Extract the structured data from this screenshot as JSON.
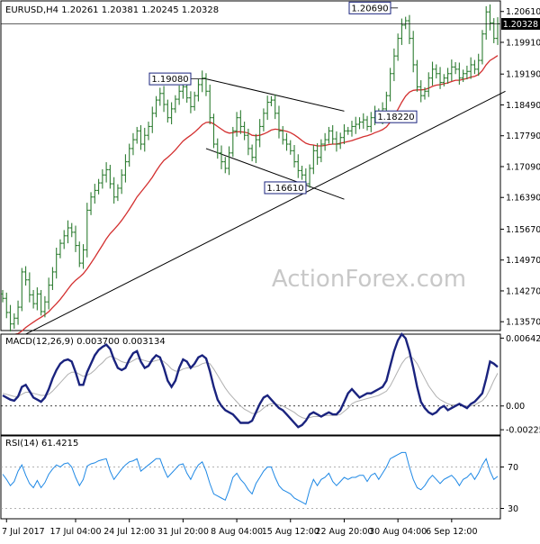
{
  "chart_data": [
    {
      "type": "candlestick",
      "pane": "price",
      "title": "EURUSD,H4  1.20261 1.20381 1.20245 1.20328",
      "watermark": "ActionForex.com",
      "ylim": [
        1.1337,
        1.2085
      ],
      "y_ticks": [
        1.2061,
        1.1991,
        1.1919,
        1.1849,
        1.1779,
        1.1709,
        1.1639,
        1.1567,
        1.1497,
        1.1427,
        1.1357
      ],
      "y_tick_labels": [
        "1.20610",
        "1.19910",
        "1.19190",
        "1.18490",
        "1.17790",
        "1.17090",
        "1.16390",
        "1.15670",
        "1.14970",
        "1.14270",
        "1.13570"
      ],
      "current_price": 1.20328,
      "current_price_label": "1.20328",
      "annotations": [
        {
          "label": "1.19080",
          "value": 1.1908
        },
        {
          "label": "1.16610",
          "value": 1.1661
        },
        {
          "label": "1.20690",
          "value": 1.2069
        },
        {
          "label": "1.18220",
          "value": 1.1822
        }
      ],
      "series": [
        {
          "name": "EURUSD close",
          "color": "#2e7d32",
          "values": [
            1.141,
            1.1378,
            1.1352,
            1.1365,
            1.139,
            1.147,
            1.1452,
            1.1418,
            1.1398,
            1.142,
            1.138,
            1.1402,
            1.144,
            1.147,
            1.151,
            1.1535,
            1.1552,
            1.157,
            1.156,
            1.153,
            1.149,
            1.152,
            1.161,
            1.164,
            1.1655,
            1.1672,
            1.169,
            1.1702,
            1.167,
            1.164,
            1.166,
            1.169,
            1.172,
            1.175,
            1.177,
            1.179,
            1.176,
            1.178,
            1.18,
            1.183,
            1.186,
            1.1875,
            1.185,
            1.182,
            1.184,
            1.1862,
            1.188,
            1.189,
            1.1865,
            1.1845,
            1.187,
            1.1895,
            1.191,
            1.188,
            1.182,
            1.176,
            1.174,
            1.172,
            1.1705,
            1.174,
            1.179,
            1.182,
            1.18,
            1.178,
            1.175,
            1.173,
            1.177,
            1.18,
            1.183,
            1.1855,
            1.186,
            1.183,
            1.179,
            1.177,
            1.176,
            1.1745,
            1.172,
            1.17,
            1.169,
            1.167,
            1.1705,
            1.1745,
            1.173,
            1.176,
            1.177,
            1.179,
            1.1772,
            1.176,
            1.1775,
            1.179,
            1.179,
            1.18,
            1.1805,
            1.181,
            1.1815,
            1.18,
            1.182,
            1.183,
            1.182,
            1.184,
            1.187,
            1.192,
            1.196,
            1.2,
            1.203,
            1.204,
            1.2,
            1.194,
            1.189,
            1.187,
            1.188,
            1.191,
            1.193,
            1.192,
            1.19,
            1.191,
            1.192,
            1.1935,
            1.193,
            1.191,
            1.192,
            1.1925,
            1.194,
            1.193,
            1.195,
            1.201,
            1.206,
            1.2035,
            1.2,
            1.2033
          ]
        },
        {
          "name": "EMA",
          "color": "#d32f2f",
          "values": [
            1.1325,
            1.1326,
            1.1327,
            1.1328,
            1.133,
            1.1336,
            1.1344,
            1.135,
            1.1356,
            1.1362,
            1.1367,
            1.1373,
            1.138,
            1.1389,
            1.1398,
            1.1408,
            1.1419,
            1.1431,
            1.1442,
            1.1451,
            1.1458,
            1.1466,
            1.1477,
            1.149,
            1.1503,
            1.1517,
            1.1531,
            1.1545,
            1.1557,
            1.1566,
            1.1576,
            1.1587,
            1.1599,
            1.1612,
            1.1626,
            1.164,
            1.1651,
            1.1662,
            1.1673,
            1.1685,
            1.1699,
            1.1712,
            1.1723,
            1.173,
            1.1738,
            1.1747,
            1.1757,
            1.1767,
            1.1774,
            1.178,
            1.1787,
            1.1795,
            1.1804,
            1.1809,
            1.181,
            1.1806,
            1.18,
            1.1794,
            1.1788,
            1.1785,
            1.1786,
            1.1788,
            1.1788,
            1.1787,
            1.1785,
            1.178,
            1.1779,
            1.178,
            1.1783,
            1.1787,
            1.1792,
            1.1794,
            1.1793,
            1.1791,
            1.1789,
            1.1786,
            1.1781,
            1.1775,
            1.1768,
            1.1762,
            1.1759,
            1.1758,
            1.1756,
            1.1756,
            1.1757,
            1.1759,
            1.176,
            1.176,
            1.1762,
            1.1764,
            1.1766,
            1.1768,
            1.1771,
            1.1774,
            1.1777,
            1.1779,
            1.1782,
            1.1786,
            1.1789,
            1.1793,
            1.1799,
            1.181,
            1.1824,
            1.1839,
            1.1855,
            1.1869,
            1.1878,
            1.1882,
            1.1883,
            1.1883,
            1.1884,
            1.1887,
            1.1891,
            1.1894,
            1.1895,
            1.1897,
            1.1899,
            1.1902,
            1.1905,
            1.1905,
            1.1907,
            1.1909,
            1.1912,
            1.1914,
            1.1918,
            1.1927,
            1.194,
            1.195,
            1.1955,
            1.1961
          ]
        }
      ],
      "trendlines": [
        {
          "name": "rising support",
          "from": {
            "i": 4,
            "value": 1.132
          },
          "to": {
            "i": 131,
            "value": 1.188
          }
        },
        {
          "name": "channel upper",
          "from": {
            "i": 53,
            "value": 1.1908
          },
          "to": {
            "i": 89,
            "value": 1.1835
          }
        },
        {
          "name": "channel lower",
          "from": {
            "i": 53,
            "value": 1.175
          },
          "to": {
            "i": 89,
            "value": 1.1635
          }
        }
      ]
    },
    {
      "type": "line",
      "pane": "macd",
      "title": "MACD(12,26,9) 0.003700 0.003134",
      "ylim": [
        -0.00275,
        0.0068
      ],
      "y_ticks": [
        0.006425,
        0.0,
        -0.002251
      ],
      "y_tick_labels": [
        "0.006425",
        "0.00",
        "-0.002251"
      ],
      "zero_line": true,
      "series": [
        {
          "name": "MACD",
          "color": "#1a237e",
          "values": [
            0.001,
            0.0008,
            0.0006,
            0.0005,
            0.0009,
            0.0018,
            0.002,
            0.0014,
            0.0008,
            0.0006,
            0.0004,
            0.0008,
            0.0016,
            0.0026,
            0.0034,
            0.004,
            0.0043,
            0.0044,
            0.0042,
            0.0032,
            0.002,
            0.002,
            0.0032,
            0.004,
            0.0048,
            0.0053,
            0.0056,
            0.0058,
            0.0054,
            0.0044,
            0.0036,
            0.0034,
            0.0036,
            0.0044,
            0.005,
            0.0052,
            0.0042,
            0.0036,
            0.0038,
            0.0044,
            0.0048,
            0.0046,
            0.0036,
            0.0024,
            0.0018,
            0.0024,
            0.0036,
            0.0044,
            0.0042,
            0.0036,
            0.004,
            0.0046,
            0.0048,
            0.0045,
            0.0033,
            0.0018,
            0.0006,
            0.0,
            -0.0004,
            -0.0006,
            -0.0008,
            -0.0012,
            -0.0016,
            -0.0016,
            -0.0016,
            -0.0014,
            -0.0006,
            0.0002,
            0.0008,
            0.001,
            0.0006,
            0.0002,
            -0.0002,
            -0.0004,
            -0.0008,
            -0.0012,
            -0.0016,
            -0.002,
            -0.0018,
            -0.0014,
            -0.0008,
            -0.0006,
            -0.0008,
            -0.001,
            -0.0008,
            -0.0006,
            -0.0008,
            -0.0008,
            -0.0004,
            0.0004,
            0.0012,
            0.0016,
            0.0012,
            0.0008,
            0.001,
            0.0012,
            0.0012,
            0.0014,
            0.0016,
            0.0018,
            0.0024,
            0.0038,
            0.0052,
            0.0062,
            0.0068,
            0.0064,
            0.0052,
            0.0036,
            0.0018,
            0.0004,
            -0.0002,
            -0.0006,
            -0.0008,
            -0.0006,
            -0.0002,
            0.0,
            -0.0004,
            -0.0002,
            0.0,
            0.0002,
            0.0,
            -0.0002,
            0.0002,
            0.0004,
            0.0008,
            0.0012,
            0.0026,
            0.0042,
            0.004,
            0.0037
          ]
        },
        {
          "name": "Signal",
          "color": "#b0b0b0",
          "values": [
            0.0012,
            0.0011,
            0.001,
            0.0009,
            0.0009,
            0.0011,
            0.0013,
            0.0013,
            0.0012,
            0.0011,
            0.001,
            0.001,
            0.0011,
            0.0014,
            0.0018,
            0.0022,
            0.0026,
            0.003,
            0.0032,
            0.0032,
            0.003,
            0.0028,
            0.0029,
            0.0031,
            0.0034,
            0.0038,
            0.0041,
            0.0045,
            0.0047,
            0.0046,
            0.0044,
            0.0042,
            0.0041,
            0.0041,
            0.0043,
            0.0045,
            0.0044,
            0.0043,
            0.0042,
            0.0042,
            0.0043,
            0.0044,
            0.0042,
            0.0039,
            0.0035,
            0.0033,
            0.0033,
            0.0035,
            0.0036,
            0.0036,
            0.0037,
            0.0038,
            0.004,
            0.0041,
            0.004,
            0.0035,
            0.0029,
            0.0023,
            0.0017,
            0.0012,
            0.0008,
            0.0004,
            0.0,
            -0.0003,
            -0.0005,
            -0.0007,
            -0.0007,
            -0.0005,
            -0.0002,
            0.0001,
            0.0002,
            0.0002,
            0.0001,
            0.0,
            -0.0002,
            -0.0004,
            -0.0006,
            -0.0009,
            -0.0011,
            -0.0012,
            -0.0011,
            -0.001,
            -0.001,
            -0.001,
            -0.0009,
            -0.0009,
            -0.0009,
            -0.0009,
            -0.0008,
            -0.0005,
            -0.0002,
            0.0002,
            0.0004,
            0.0005,
            0.0006,
            0.0007,
            0.0008,
            0.0009,
            0.001,
            0.0012,
            0.0014,
            0.0019,
            0.0026,
            0.0033,
            0.004,
            0.0045,
            0.0047,
            0.0045,
            0.004,
            0.0033,
            0.0026,
            0.0019,
            0.0014,
            0.0009,
            0.0006,
            0.0004,
            0.0002,
            0.0001,
            0.0001,
            0.0001,
            0.0,
            0.0,
            0.0,
            0.0001,
            0.0003,
            0.0005,
            0.0009,
            0.0016,
            0.0024,
            0.0031
          ]
        }
      ]
    },
    {
      "type": "line",
      "pane": "rsi",
      "title": "RSI(14) 61.4215",
      "ylim": [
        20,
        100
      ],
      "y_ticks": [
        70,
        30
      ],
      "y_tick_labels": [
        "70",
        "30"
      ],
      "levels": [
        70,
        30
      ],
      "series": [
        {
          "name": "RSI",
          "color": "#1e88e5",
          "values": [
            63,
            58,
            52,
            56,
            66,
            72,
            62,
            54,
            50,
            57,
            50,
            55,
            63,
            68,
            72,
            70,
            73,
            74,
            70,
            60,
            52,
            58,
            71,
            73,
            74,
            76,
            77,
            78,
            66,
            58,
            63,
            68,
            72,
            75,
            76,
            78,
            66,
            69,
            72,
            75,
            78,
            78,
            68,
            60,
            64,
            68,
            72,
            73,
            64,
            58,
            66,
            72,
            75,
            66,
            54,
            44,
            42,
            40,
            38,
            48,
            60,
            64,
            58,
            54,
            48,
            44,
            54,
            60,
            66,
            70,
            70,
            60,
            52,
            48,
            46,
            44,
            40,
            38,
            36,
            34,
            48,
            58,
            52,
            58,
            60,
            64,
            56,
            52,
            56,
            60,
            58,
            60,
            60,
            62,
            62,
            56,
            62,
            64,
            58,
            64,
            70,
            78,
            80,
            82,
            84,
            84,
            70,
            58,
            50,
            48,
            52,
            58,
            62,
            58,
            54,
            58,
            60,
            62,
            58,
            52,
            58,
            60,
            64,
            58,
            64,
            72,
            78,
            66,
            58,
            61
          ]
        }
      ]
    },
    {
      "type": "axis",
      "pane": "time",
      "x_labels": [
        "7 Jul 2017",
        "17 Jul 04:00",
        "24 Jul 12:00",
        "31 Jul 20:00",
        "8 Aug 04:00",
        "15 Aug 12:00",
        "22 Aug 20:00",
        "30 Aug 04:00",
        "6 Sep 12:00"
      ],
      "x_label_index": [
        1,
        19,
        33,
        47,
        61,
        75,
        89,
        103,
        117
      ]
    }
  ]
}
